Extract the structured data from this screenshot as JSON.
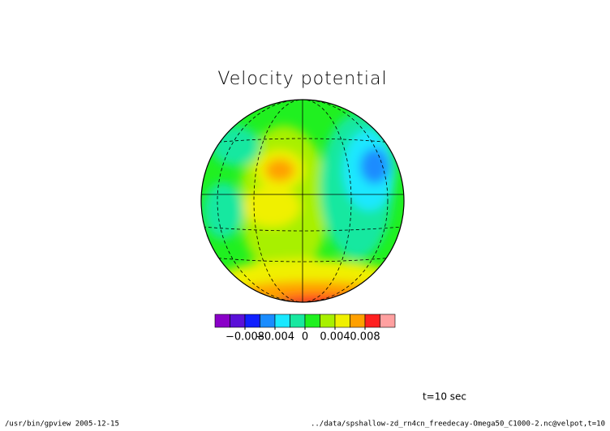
{
  "chart_data": {
    "type": "contour",
    "title": "Velocity potential",
    "annotation": "t=10 sec",
    "footer_left": "/usr/bin/gpview  2005-12-15",
    "footer_right": "../data/spshallow-zd_rn4cn_freedecay-Omega50_C1000-2.nc@velpot,t=10",
    "clim": [
      -0.012,
      0.012
    ],
    "colors": [
      "#8a00c8",
      "#5a10d8",
      "#1020ff",
      "#1a8cff",
      "#1ae8ff",
      "#18e8a0",
      "#20f020",
      "#a8f000",
      "#f0f000",
      "#ffa000",
      "#ff2020",
      "#ffa0a0"
    ],
    "ticks": [
      {
        "value": -0.008,
        "label": "−0.008"
      },
      {
        "value": -0.004,
        "label": "−0.004"
      },
      0,
      0.004,
      0.008
    ]
  }
}
